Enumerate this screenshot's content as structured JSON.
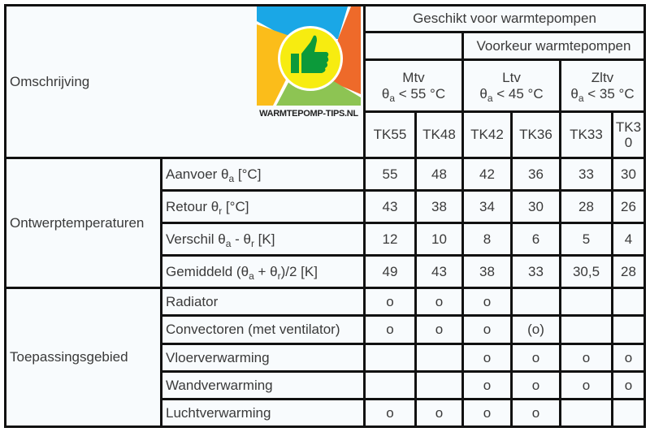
{
  "header": {
    "omschrijving": "Omschrijving",
    "geschikt": "Geschikt voor warmtepompen",
    "voorkeur": "Voorkeur warmtepompen",
    "groups": [
      {
        "name": "Mtv",
        "theta": "θ",
        "sub": "a",
        "limit": " < 55 °C"
      },
      {
        "name": "Ltv",
        "theta": "θ",
        "sub": "a",
        "limit": " < 45 °C"
      },
      {
        "name": "Zltv",
        "theta": "θ",
        "sub": "a",
        "limit": " < 35 °C"
      }
    ],
    "columns": [
      "TK55",
      "TK48",
      "TK42",
      "TK36",
      "TK33",
      "TK30"
    ]
  },
  "logo": {
    "text": "WARMTEPOMP-TIPS.NL",
    "colors": {
      "blue": "#1aa7e6",
      "orange": "#ee6a2a",
      "yellow": "#fbbd1a",
      "green": "#8dc453",
      "circle": "#f7ec10",
      "thumb": "#0c9a3a"
    }
  },
  "sections": [
    {
      "title": "Ontwerptemperaturen",
      "rows": [
        {
          "p1": "Aanvoer θ",
          "s1": "a",
          "p2": " [°C]",
          "s2": "",
          "p3": "",
          "values": [
            "55",
            "48",
            "42",
            "36",
            "33",
            "30"
          ]
        },
        {
          "p1": "Retour θ",
          "s1": "r",
          "p2": " [°C]",
          "s2": "",
          "p3": "",
          "values": [
            "43",
            "38",
            "34",
            "30",
            "28",
            "26"
          ]
        },
        {
          "p1": "Verschil θ",
          "s1": "a",
          "p2": " - θ",
          "s2": "r",
          "p3": " [K]",
          "values": [
            "12",
            "10",
            "8",
            "6",
            "5",
            "4"
          ]
        },
        {
          "p1": "Gemiddeld (θ",
          "s1": "a",
          "p2": " + θ",
          "s2": "r",
          "p3": ")/2 [K]",
          "values": [
            "49",
            "43",
            "38",
            "33",
            "30,5",
            "28"
          ]
        }
      ]
    },
    {
      "title": "Toepassingsgebied",
      "rows": [
        {
          "p1": "Radiator",
          "values": [
            "o",
            "o",
            "o",
            "",
            "",
            ""
          ]
        },
        {
          "p1": "Convectoren (met ventilator)",
          "values": [
            "o",
            "o",
            "o",
            "(o)",
            "",
            ""
          ]
        },
        {
          "p1": "Vloerverwarming",
          "values": [
            "",
            "",
            "o",
            "o",
            "o",
            "o"
          ]
        },
        {
          "p1": "Wandverwarming",
          "values": [
            "",
            "",
            "o",
            "o",
            "o",
            "o"
          ]
        },
        {
          "p1": "Luchtverwarming",
          "values": [
            "o",
            "o",
            "o",
            "o",
            "",
            ""
          ]
        }
      ]
    }
  ]
}
